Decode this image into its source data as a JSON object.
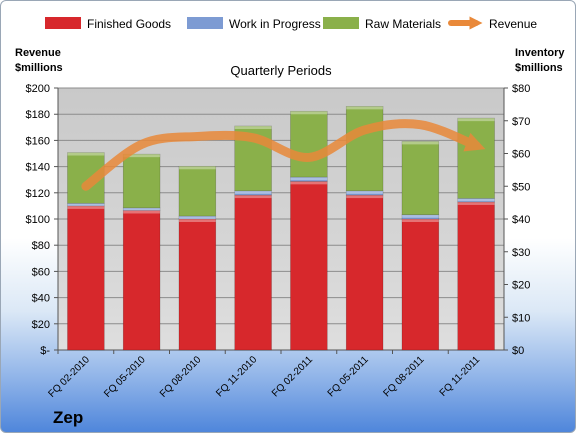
{
  "chart_data": {
    "type": "bar",
    "stacked": true,
    "title": "Quarterly Periods",
    "company": "Zep",
    "left_axis": {
      "label_line1": "Revenue",
      "label_line2": "$millions",
      "ticks": [
        "$-",
        "$20",
        "$40",
        "$60",
        "$80",
        "$100",
        "$120",
        "$140",
        "$160",
        "$180",
        "$200"
      ],
      "range": [
        0,
        200
      ]
    },
    "right_axis": {
      "label_line1": "Inventory",
      "label_line2": "$millions",
      "ticks": [
        "$0",
        "$10",
        "$20",
        "$30",
        "$40",
        "$50",
        "$60",
        "$70",
        "$80"
      ],
      "range": [
        0,
        80
      ]
    },
    "categories": [
      "FQ 02-2010",
      "FQ 05-2010",
      "FQ 08-2010",
      "FQ 11-2010",
      "FQ 02-2011",
      "FQ 05-2011",
      "FQ 08-2011",
      "FQ 11-2011"
    ],
    "series": [
      {
        "name": "Finished Goods",
        "axis": "right",
        "color": "#d7282c",
        "values": [
          44,
          42.6,
          40,
          47.3,
          51.5,
          47.3,
          40,
          45.2
        ]
      },
      {
        "name": "Work in Progress",
        "axis": "right",
        "color": "#7d9bd3",
        "values": [
          0.8,
          0.8,
          0.9,
          1.3,
          1.3,
          1.3,
          1.3,
          1.1
        ]
      },
      {
        "name": "Raw Materials",
        "axis": "right",
        "color": "#8ab04a",
        "values": [
          15.5,
          16.4,
          15.2,
          19.8,
          20.1,
          25.8,
          22.4,
          24.5
        ]
      },
      {
        "name": "Revenue",
        "axis": "left",
        "type": "line",
        "color": "#e9893a",
        "values": [
          125,
          157,
          163,
          162,
          147,
          168,
          172,
          156
        ]
      }
    ],
    "legend": [
      "Finished Goods",
      "Work in Progress",
      "Raw Materials",
      "Revenue"
    ],
    "legend_position": "top",
    "grid": true
  }
}
